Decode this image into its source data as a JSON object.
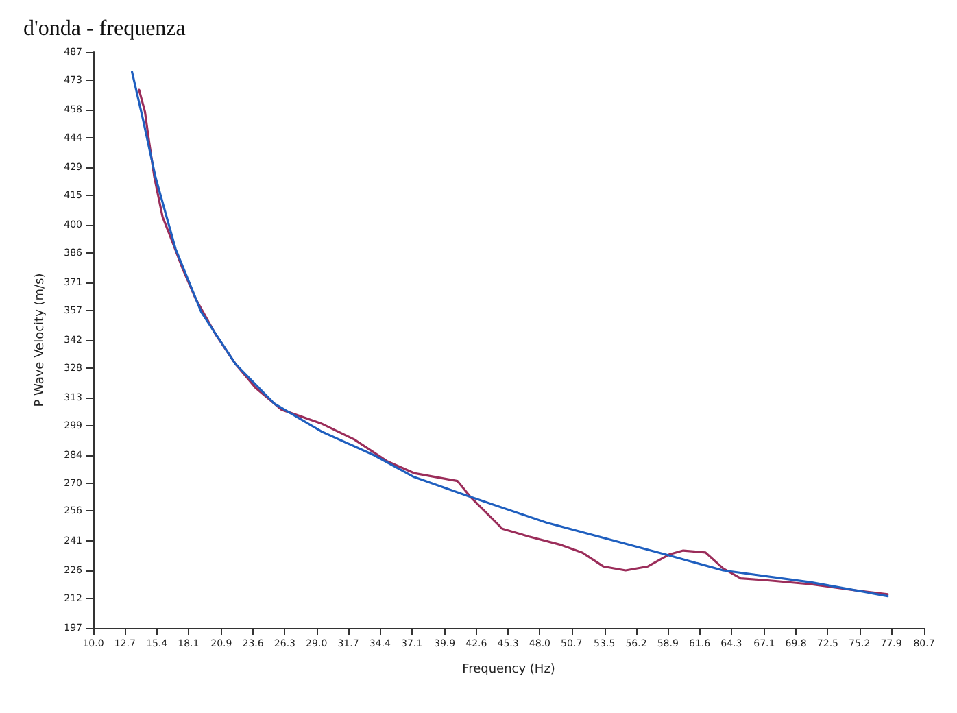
{
  "chart_data": {
    "type": "line",
    "title": "d'onda - frequenza",
    "xlabel": "Frequency (Hz)",
    "ylabel": "P Wave Velocity (m/s)",
    "xlim": [
      10.0,
      80.7
    ],
    "xticks": [
      {
        "value": 10.0,
        "label": "10.0"
      },
      12.7,
      15.4,
      18.1,
      20.9,
      23.6,
      26.3,
      {
        "value": 29.0,
        "label": "29.0"
      },
      31.7,
      34.4,
      37.1,
      39.9,
      42.6,
      45.3,
      {
        "value": 48.0,
        "label": "48.0"
      },
      50.7,
      53.5,
      56.2,
      58.9,
      61.6,
      64.3,
      67.1,
      69.8,
      72.5,
      75.2,
      77.9,
      80.7
    ],
    "ylim": [
      197,
      487
    ],
    "yticks": [
      197,
      212,
      226,
      241,
      256,
      270,
      284,
      299,
      313,
      328,
      342,
      357,
      371,
      386,
      400,
      415,
      429,
      444,
      458,
      473,
      487
    ],
    "grid": false,
    "marker": "none",
    "line_style": "solid",
    "series": [
      {
        "color": "#9b2d5a",
        "x": [
          13.9,
          14.4,
          14.7,
          15.2,
          15.9,
          16.7,
          17.6,
          18.7,
          20.4,
          22.1,
          23.8,
          26.0,
          29.4,
          32.2,
          35.0,
          37.3,
          41.0,
          42.1,
          44.8,
          47.1,
          49.7,
          51.6,
          53.4,
          55.3,
          57.2,
          59.0,
          60.2,
          62.1,
          63.6,
          65.1,
          67.4,
          71.1,
          74.8,
          77.6
        ],
        "values": [
          468,
          457,
          444,
          424,
          404,
          392,
          378,
          363,
          345,
          330,
          318,
          307,
          300,
          292,
          281,
          275,
          271,
          263,
          247,
          243,
          239,
          235,
          228,
          226,
          228,
          234,
          236,
          235,
          227,
          222,
          221,
          219,
          216,
          214
        ]
      },
      {
        "color": "#1f5fbf",
        "x": [
          13.3,
          14.2,
          15.3,
          17.0,
          19.2,
          22.1,
          25.4,
          29.4,
          33.9,
          37.3,
          42.1,
          48.6,
          58.7,
          63.6,
          71.1,
          77.6
        ],
        "values": [
          477,
          454,
          424,
          388,
          356,
          330,
          310,
          296,
          284,
          273,
          263,
          250,
          234,
          226,
          220,
          213
        ]
      }
    ]
  }
}
